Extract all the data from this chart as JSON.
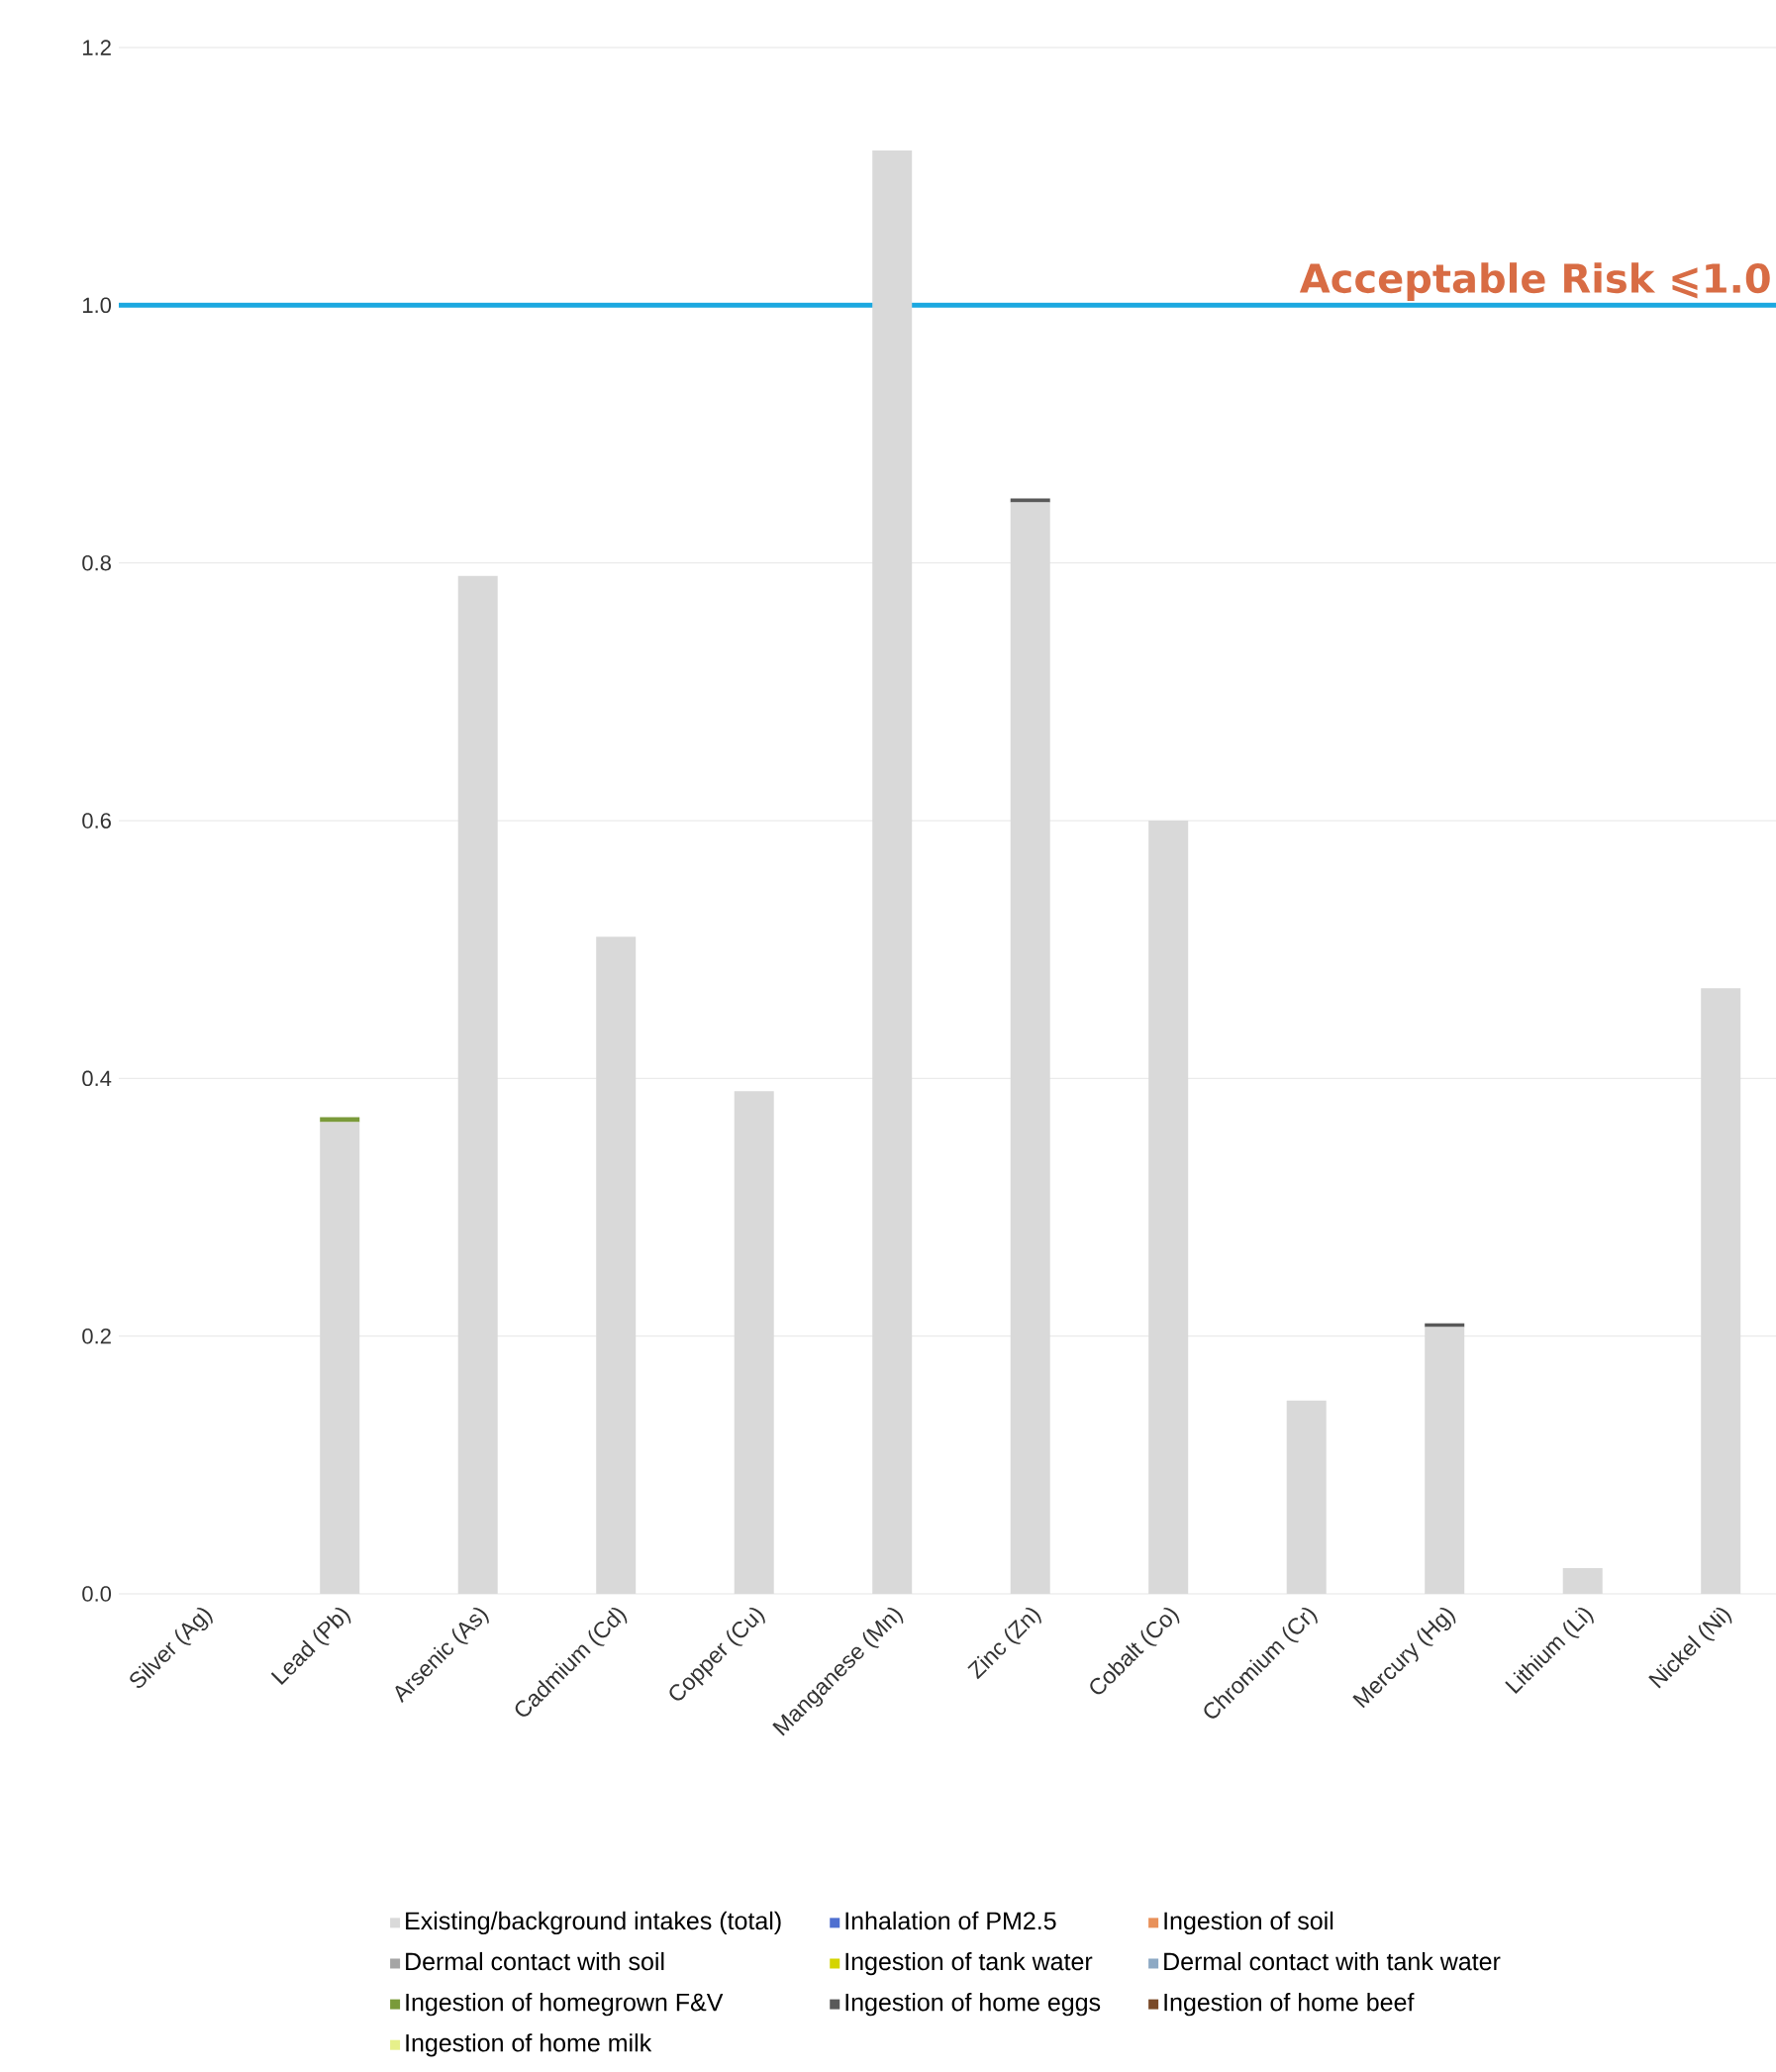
{
  "chart_data": {
    "type": "bar",
    "stacked": true,
    "categories": [
      "Silver (Ag)",
      "Lead (Pb)",
      "Arsenic (As)",
      "Cadmium (Cd)",
      "Copper (Cu)",
      "Manganese (Mn)",
      "Zinc (Zn)",
      "Cobalt (Co)",
      "Chromium (Cr)",
      "Mercury (Hg)",
      "Lithium (Li)",
      "Nickel (Ni)"
    ],
    "series": [
      {
        "name": "Existing/background intakes (total)",
        "color": "#d9d9d9",
        "values": [
          0,
          0.366,
          0.79,
          0.51,
          0.39,
          1.12,
          0.847,
          0.6,
          0.15,
          0.207,
          0.02,
          0.47
        ]
      },
      {
        "name": "Inhalation of PM2.5",
        "color": "#4f6fd0",
        "values": [
          0,
          0,
          0,
          0,
          0,
          0,
          0,
          0,
          0,
          0,
          0,
          0
        ]
      },
      {
        "name": "Ingestion of soil",
        "color": "#e8915a",
        "values": [
          0,
          0,
          0,
          0,
          0,
          0,
          0,
          0,
          0,
          0,
          0,
          0
        ]
      },
      {
        "name": "Dermal contact with soil",
        "color": "#a5a5a5",
        "values": [
          0,
          0,
          0,
          0,
          0,
          0,
          0,
          0,
          0,
          0,
          0,
          0
        ]
      },
      {
        "name": "Ingestion of tank water",
        "color": "#d4d400",
        "values": [
          0,
          0,
          0,
          0,
          0,
          0,
          0,
          0,
          0,
          0,
          0,
          0
        ]
      },
      {
        "name": "Dermal contact with tank water",
        "color": "#8da9c4",
        "values": [
          0,
          0,
          0,
          0,
          0,
          0,
          0,
          0,
          0,
          0,
          0,
          0
        ]
      },
      {
        "name": "Ingestion of homegrown F&V",
        "color": "#7a9a3a",
        "values": [
          0,
          0.004,
          0,
          0,
          0,
          0,
          0,
          0,
          0,
          0,
          0,
          0
        ]
      },
      {
        "name": "Ingestion of home eggs",
        "color": "#595959",
        "values": [
          0,
          0,
          0,
          0,
          0,
          0,
          0.003,
          0,
          0,
          0.003,
          0,
          0
        ]
      },
      {
        "name": "Ingestion of home beef",
        "color": "#7a4a28",
        "values": [
          0,
          0,
          0,
          0,
          0,
          0,
          0,
          0,
          0,
          0,
          0,
          0
        ]
      },
      {
        "name": "Ingestion of home milk",
        "color": "#e6f08a",
        "values": [
          0,
          0,
          0,
          0,
          0,
          0,
          0,
          0,
          0,
          0,
          0,
          0
        ]
      }
    ],
    "ylim": [
      0,
      1.2
    ],
    "yticks": [
      {
        "value": 0,
        "label": "0.0"
      },
      {
        "value": 0.2,
        "label": "0.2"
      },
      {
        "value": 0.4,
        "label": "0.4"
      },
      {
        "value": 0.6,
        "label": "0.6"
      },
      {
        "value": 0.8,
        "label": "0.8"
      },
      {
        "value": 1.0,
        "label": "1.0"
      },
      {
        "value": 1.2,
        "label": "1.2"
      }
    ],
    "grid": "y",
    "legend": "bottom",
    "ref_lines": [
      {
        "axis": "y",
        "value": 1.0,
        "label": "Acceptable Risk  ⩽1.0",
        "color": "#1ba8e0"
      }
    ]
  }
}
